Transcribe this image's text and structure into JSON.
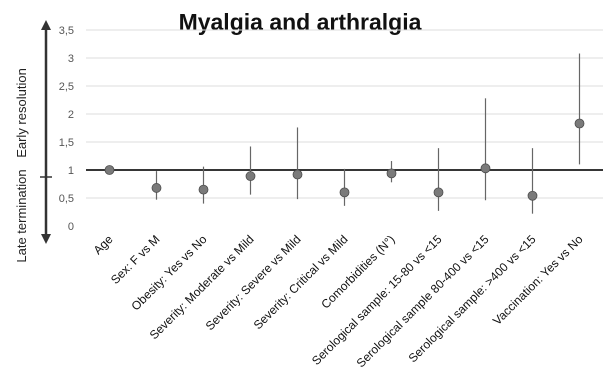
{
  "chart_data": {
    "type": "scatter",
    "title": "Myalgia and arthralgia",
    "ylabel_upper": "Early resolution",
    "ylabel_lower": "Late termination",
    "ylim": [
      0,
      3.5
    ],
    "yticks": [
      "0",
      "0,5",
      "1",
      "1,5",
      "2",
      "2,5",
      "3",
      "3,5"
    ],
    "reference_line": 1,
    "grid": true,
    "categories": [
      "Age",
      "Sex: F vs M",
      "Obesity: Yes vs No",
      "Severity: Moderate vs Mild",
      "Severity: Severe vs Mild",
      "Severity: Critical vs Mild",
      "Comorbidities (N°)",
      "Serological sample: 15-80 vs <15",
      "Serological sample 80-400 vs <15",
      "Serological sample: >400 vs <15",
      "Vaccination: Yes vs No"
    ],
    "estimates": [
      1.0,
      0.68,
      0.65,
      0.89,
      0.92,
      0.6,
      0.94,
      0.6,
      1.03,
      0.54,
      1.83
    ],
    "lower": [
      0.98,
      0.47,
      0.4,
      0.56,
      0.48,
      0.36,
      0.78,
      0.27,
      0.46,
      0.22,
      1.1
    ],
    "upper": [
      1.02,
      0.98,
      1.06,
      1.42,
      1.76,
      1.02,
      1.16,
      1.39,
      2.28,
      1.39,
      3.08
    ],
    "colors": {
      "point": "#7a7a7a",
      "errorbar": "#666666",
      "refline": "#1a1a1a",
      "grid": "#dddddd"
    }
  }
}
